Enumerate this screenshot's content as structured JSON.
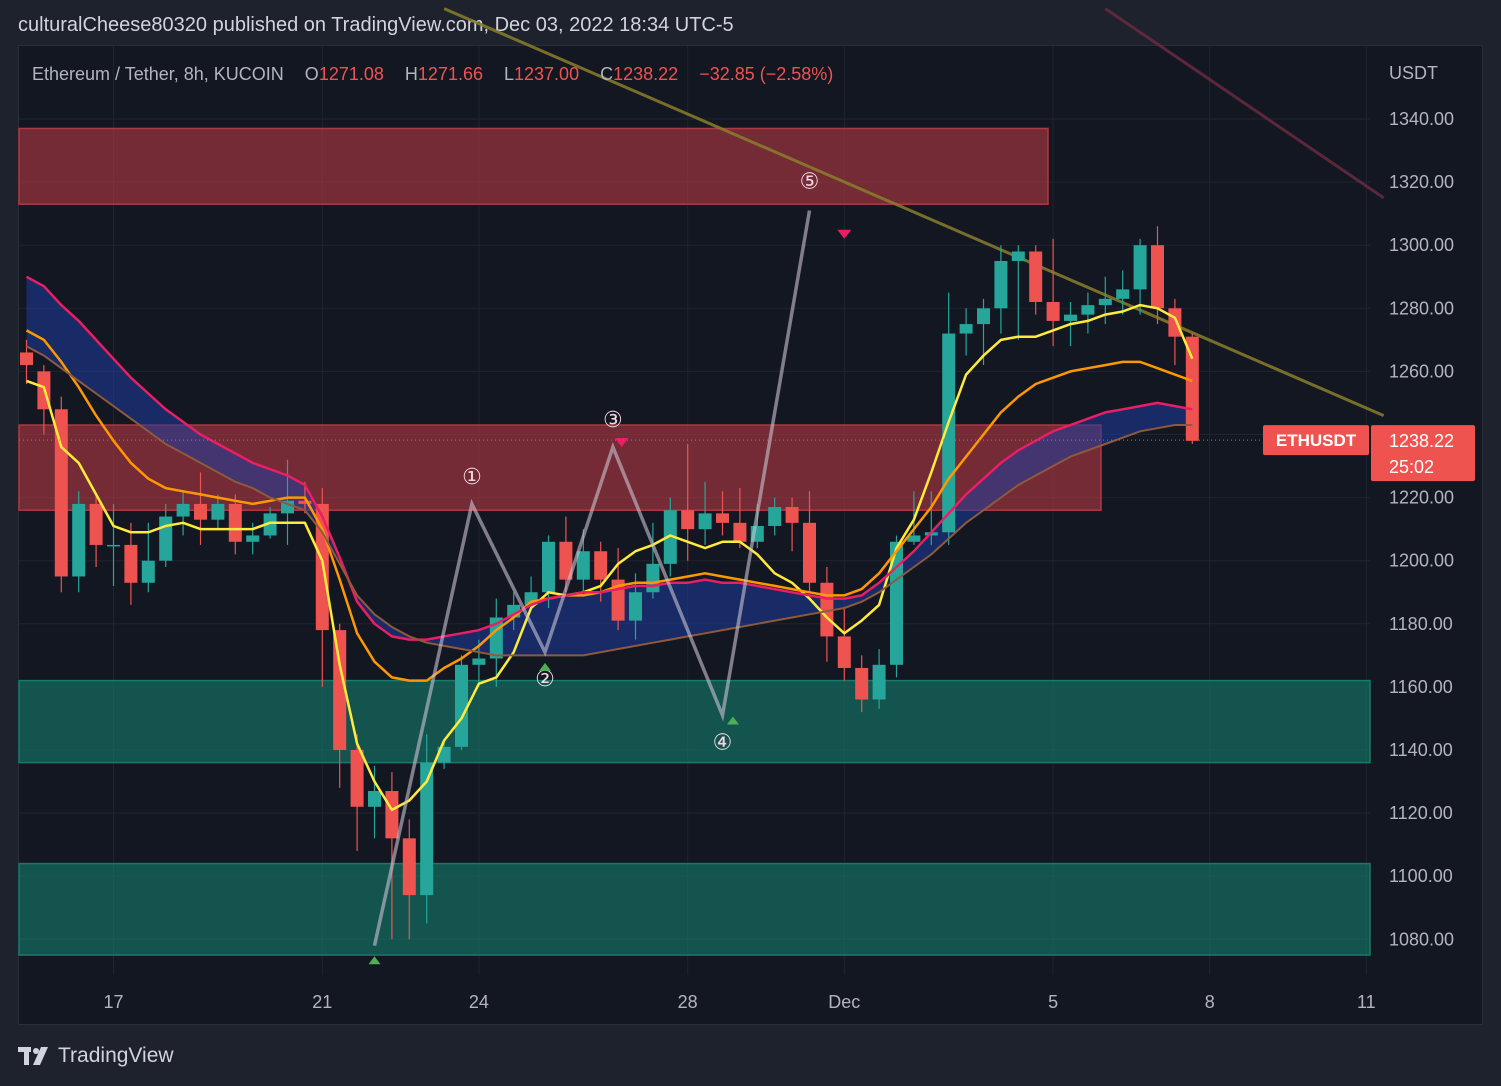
{
  "header": {
    "published_text": "culturalCheese80320 published on TradingView.com, Dec 03, 2022 18:34 UTC-5"
  },
  "legend": {
    "symbol": "Ethereum / Tether, 8h, KUCOIN",
    "o_label": "O",
    "o_value": "1271.08",
    "h_label": "H",
    "h_value": "1271.66",
    "l_label": "L",
    "l_value": "1237.00",
    "c_label": "C",
    "c_value": "1238.22",
    "change": "−32.85 (−2.58%)"
  },
  "footer": {
    "brand": "TradingView"
  },
  "colors": {
    "up": "#26a69a",
    "down": "#ef5350",
    "background": "#131722",
    "resistance_zone": "#b03842",
    "support_zone": "#157a6b",
    "ma_yellow": "#ffeb3b",
    "ma_orange": "#ff9800",
    "ma_pink": "#e91e63",
    "cloud": "#1e3c9e"
  },
  "chart_data": {
    "type": "candlestick",
    "symbol": "ETHUSDT",
    "timeframe": "8h",
    "exchange": "KUCOIN",
    "quote_currency": "USDT",
    "price_axis": {
      "unit": "USDT",
      "ylim": [
        1070,
        1350
      ],
      "ticks": [
        "1340.00",
        "1320.00",
        "1300.00",
        "1280.00",
        "1260.00",
        "1240.00",
        "1220.00",
        "1200.00",
        "1180.00",
        "1160.00",
        "1140.00",
        "1120.00",
        "1100.00",
        "1080.00"
      ],
      "tick_values": [
        1340,
        1320,
        1300,
        1280,
        1260,
        1240,
        1220,
        1200,
        1180,
        1160,
        1140,
        1120,
        1100,
        1080
      ]
    },
    "time_axis": {
      "labels": [
        "17",
        "21",
        "24",
        "28",
        "Dec",
        "5",
        "8",
        "11"
      ],
      "label_bar_index": [
        5,
        17,
        26,
        38,
        47,
        59,
        68,
        77
      ]
    },
    "last_price": {
      "label": "ETHUSDT",
      "value": "1238.22",
      "countdown": "25:02"
    },
    "candles": [
      [
        1266,
        1262,
        1270,
        1256
      ],
      [
        1260,
        1248,
        1262,
        1240
      ],
      [
        1248,
        1195,
        1252,
        1190
      ],
      [
        1195,
        1218,
        1222,
        1190
      ],
      [
        1218,
        1205,
        1221,
        1198
      ],
      [
        1205,
        1205,
        1218,
        1192
      ],
      [
        1205,
        1193,
        1212,
        1186
      ],
      [
        1193,
        1200,
        1212,
        1190
      ],
      [
        1200,
        1214,
        1218,
        1198
      ],
      [
        1214,
        1218,
        1222,
        1208
      ],
      [
        1218,
        1213,
        1228,
        1205
      ],
      [
        1213,
        1218,
        1221,
        1210
      ],
      [
        1218,
        1206,
        1221,
        1202
      ],
      [
        1206,
        1208,
        1212,
        1202
      ],
      [
        1208,
        1215,
        1217,
        1207
      ],
      [
        1215,
        1219,
        1232,
        1205
      ],
      [
        1219,
        1218,
        1225,
        1215
      ],
      [
        1218,
        1178,
        1223,
        1160
      ],
      [
        1178,
        1140,
        1180,
        1128
      ],
      [
        1140,
        1122,
        1145,
        1108
      ],
      [
        1122,
        1127,
        1135,
        1112
      ],
      [
        1127,
        1112,
        1133,
        1080
      ],
      [
        1112,
        1094,
        1118,
        1080
      ],
      [
        1094,
        1136,
        1145,
        1085
      ],
      [
        1136,
        1141,
        1143,
        1134
      ],
      [
        1141,
        1167,
        1170,
        1140
      ],
      [
        1167,
        1169,
        1175,
        1160
      ],
      [
        1169,
        1182,
        1188,
        1160
      ],
      [
        1182,
        1186,
        1190,
        1178
      ],
      [
        1186,
        1190,
        1195,
        1186
      ],
      [
        1190,
        1206,
        1208,
        1185
      ],
      [
        1206,
        1194,
        1214,
        1190
      ],
      [
        1194,
        1203,
        1210,
        1190
      ],
      [
        1203,
        1194,
        1206,
        1187
      ],
      [
        1194,
        1181,
        1204,
        1178
      ],
      [
        1181,
        1190,
        1196,
        1175
      ],
      [
        1190,
        1199,
        1212,
        1188
      ],
      [
        1199,
        1216,
        1220,
        1195
      ],
      [
        1216,
        1210,
        1237,
        1200
      ],
      [
        1210,
        1215,
        1225,
        1205
      ],
      [
        1215,
        1212,
        1222,
        1208
      ],
      [
        1212,
        1206,
        1223,
        1204
      ],
      [
        1206,
        1211,
        1218,
        1204
      ],
      [
        1211,
        1217,
        1220,
        1208
      ],
      [
        1217,
        1212,
        1220,
        1203
      ],
      [
        1212,
        1193,
        1222,
        1190
      ],
      [
        1193,
        1176,
        1198,
        1168
      ],
      [
        1176,
        1166,
        1185,
        1162
      ],
      [
        1166,
        1156,
        1170,
        1152
      ],
      [
        1156,
        1167,
        1172,
        1153
      ],
      [
        1167,
        1206,
        1208,
        1163
      ],
      [
        1206,
        1208,
        1222,
        1205
      ],
      [
        1208,
        1209,
        1222,
        1205
      ],
      [
        1209,
        1272,
        1285,
        1205
      ],
      [
        1272,
        1275,
        1280,
        1265
      ],
      [
        1275,
        1280,
        1283,
        1262
      ],
      [
        1280,
        1295,
        1300,
        1272
      ],
      [
        1295,
        1298,
        1300,
        1270
      ],
      [
        1298,
        1282,
        1300,
        1278
      ],
      [
        1282,
        1276,
        1302,
        1268
      ],
      [
        1276,
        1278,
        1282,
        1268
      ],
      [
        1278,
        1281,
        1285,
        1272
      ],
      [
        1281,
        1283,
        1290,
        1275
      ],
      [
        1283,
        1286,
        1292,
        1278
      ],
      [
        1286,
        1300,
        1302,
        1278
      ],
      [
        1300,
        1280,
        1306,
        1275
      ],
      [
        1280,
        1271,
        1283,
        1262
      ],
      [
        1271,
        1238,
        1272,
        1237
      ]
    ],
    "zones": [
      {
        "kind": "resistance",
        "from": 1313,
        "to": 1337
      },
      {
        "kind": "resistance",
        "from": 1216,
        "to": 1243
      },
      {
        "kind": "support",
        "from": 1136,
        "to": 1162
      },
      {
        "kind": "support",
        "from": 1075,
        "to": 1104
      }
    ],
    "elliott_wave": {
      "labels": [
        "①",
        "②",
        "③",
        "④",
        "⑤"
      ],
      "points": [
        {
          "bar": 20,
          "price": 1078
        },
        {
          "bar": 25.6,
          "price": 1218
        },
        {
          "bar": 29.8,
          "price": 1171
        },
        {
          "bar": 33.7,
          "price": 1236
        },
        {
          "bar": 40,
          "price": 1151
        },
        {
          "bar": 45,
          "price": 1311
        }
      ]
    },
    "trendlines": [
      {
        "name": "descending-trendline",
        "p1": {
          "bar": 24,
          "price": 1375
        },
        "p2": {
          "bar": 78,
          "price": 1246
        }
      },
      {
        "name": "upper-trendline",
        "p1": {
          "bar": 62,
          "price": 1375
        },
        "p2": {
          "bar": 78,
          "price": 1315
        }
      }
    ],
    "indicators": [
      {
        "name": "yellow-ma",
        "color": "#ffeb3b",
        "values": [
          1257,
          1255,
          1236,
          1231,
          1221,
          1211,
          1209,
          1209,
          1211,
          1212,
          1210,
          1210,
          1210,
          1210,
          1212,
          1212,
          1212,
          1200,
          1167,
          1142,
          1130,
          1121,
          1124,
          1130,
          1143,
          1150,
          1161,
          1163,
          1171,
          1185,
          1190,
          1189,
          1190,
          1192,
          1199,
          1203,
          1205,
          1208,
          1206,
          1204,
          1206,
          1206,
          1202,
          1196,
          1193,
          1188,
          1182,
          1177,
          1181,
          1186,
          1204,
          1213,
          1228,
          1244,
          1259,
          1265,
          1270,
          1271,
          1271,
          1273,
          1275,
          1276,
          1278,
          1279,
          1281,
          1280,
          1277,
          1264
        ]
      },
      {
        "name": "orange-ma",
        "color": "#ff9800",
        "values": [
          1273,
          1270,
          1263,
          1255,
          1246,
          1238,
          1231,
          1226,
          1223,
          1222,
          1221,
          1220,
          1219,
          1218,
          1219,
          1220,
          1220,
          1210,
          1194,
          1177,
          1168,
          1163,
          1162,
          1162,
          1166,
          1169,
          1173,
          1178,
          1182,
          1187,
          1188,
          1189,
          1189,
          1190,
          1192,
          1193,
          1193,
          1194,
          1195,
          1196,
          1195,
          1194,
          1193,
          1192,
          1191,
          1190,
          1189,
          1189,
          1191,
          1196,
          1203,
          1210,
          1217,
          1226,
          1233,
          1240,
          1247,
          1252,
          1256,
          1258,
          1260,
          1261,
          1262,
          1263,
          1263,
          1261,
          1259,
          1257
        ]
      },
      {
        "name": "pink-ma",
        "color": "#e91e63",
        "values": [
          1290,
          1287,
          1281,
          1276,
          1270,
          1264,
          1258,
          1253,
          1248,
          1244,
          1240,
          1237,
          1234,
          1231,
          1229,
          1227,
          1224,
          1214,
          1201,
          1187,
          1180,
          1176,
          1175,
          1175,
          1176,
          1177,
          1178,
          1180,
          1183,
          1186,
          1188,
          1189,
          1190,
          1190,
          1191,
          1192,
          1192,
          1193,
          1193,
          1194,
          1193,
          1193,
          1192,
          1191,
          1190,
          1189,
          1188,
          1188,
          1189,
          1193,
          1198,
          1203,
          1209,
          1215,
          1221,
          1226,
          1231,
          1235,
          1238,
          1241,
          1243,
          1245,
          1247,
          1248,
          1249,
          1250,
          1249,
          1248
        ]
      },
      {
        "name": "brown-ma",
        "color": "#8d5a3c",
        "values": [
          1268,
          1265,
          1261,
          1257,
          1253,
          1249,
          1245,
          1241,
          1237,
          1234,
          1231,
          1228,
          1225,
          1223,
          1220,
          1218,
          1216,
          1209,
          1199,
          1189,
          1183,
          1179,
          1176,
          1174,
          1173,
          1172,
          1171,
          1170,
          1170,
          1170,
          1170,
          1170,
          1170,
          1171,
          1172,
          1173,
          1174,
          1175,
          1176,
          1177,
          1178,
          1179,
          1180,
          1181,
          1182,
          1183,
          1184,
          1185,
          1187,
          1190,
          1194,
          1198,
          1202,
          1207,
          1212,
          1216,
          1220,
          1224,
          1227,
          1230,
          1233,
          1235,
          1237,
          1239,
          1241,
          1242,
          1243,
          1243
        ]
      }
    ],
    "signals": [
      {
        "type": "buy",
        "bar": 20,
        "price": 1074
      },
      {
        "type": "buy",
        "bar": 29.8,
        "price": 1167
      },
      {
        "type": "buy",
        "bar": 40.6,
        "price": 1150
      },
      {
        "type": "sell",
        "bar": 34.2,
        "price": 1237
      },
      {
        "type": "sell",
        "bar": 47,
        "price": 1303
      }
    ]
  }
}
